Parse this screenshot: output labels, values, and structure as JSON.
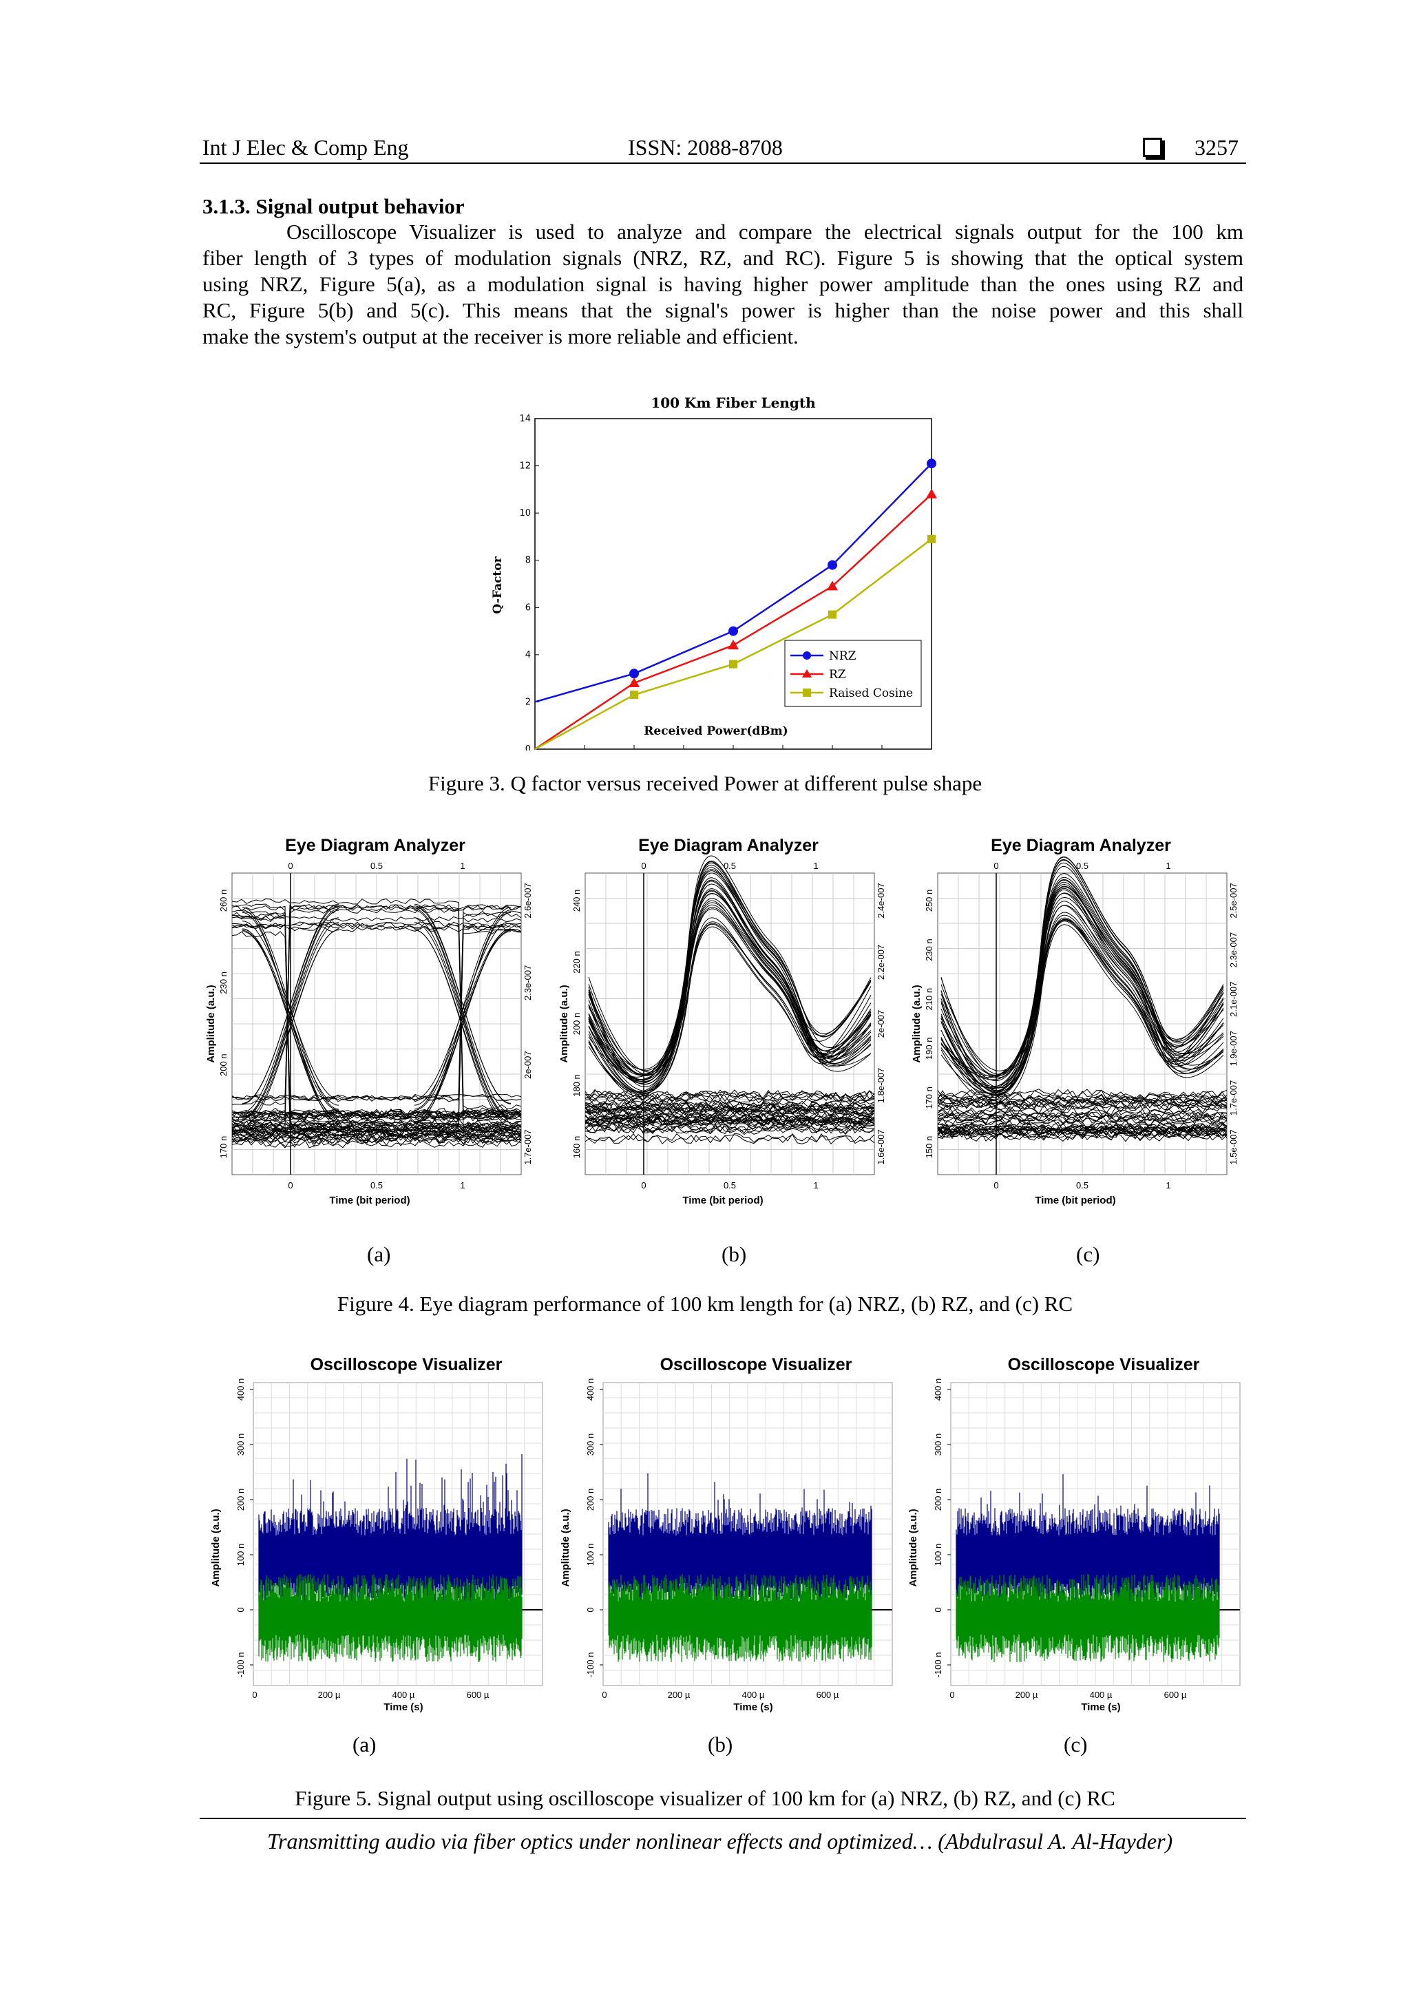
{
  "header": {
    "journal": "Int J Elec & Comp Eng",
    "issn": "ISSN: 2088-8708",
    "page_number": "3257"
  },
  "section": {
    "title": "3.1.3. Signal output behavior",
    "lines": [
      "Oscilloscope Visualizer is used to analyze and compare the electrical signals output for the 100 km",
      "fiber length of 3 types of modulation signals (NRZ, RZ, and RC). Figure 5 is showing that the optical system",
      "using NRZ, Figure 5(a), as a modulation signal is having higher power amplitude than the ones using RZ and",
      "RC, Figure 5(b) and 5(c). This means that the signal's power is higher than the noise power and this shall",
      "make the system's output at the receiver is more reliable and efficient."
    ]
  },
  "figure3": {
    "caption": "Figure 3. Q factor versus received Power at different pulse shape"
  },
  "chart_data": {
    "type": "line",
    "title": "100 Km Fiber Length",
    "xlabel": "Received Power(dBm)",
    "ylabel": "Q-Factor",
    "xlim": [
      -43,
      -35
    ],
    "ylim": [
      0,
      14
    ],
    "x_ticks": [
      "-43",
      "-42",
      "-41",
      "-40",
      "-39",
      "-38",
      "-37",
      "-36",
      "-35"
    ],
    "y_ticks": [
      "0",
      "2",
      "4",
      "6",
      "8",
      "10",
      "12",
      "14"
    ],
    "legend_position": "bottom-right",
    "series": [
      {
        "name": "NRZ",
        "color": "#1010e0",
        "marker": "circle",
        "x": [
          -43,
          -41,
          -39,
          -37,
          -35
        ],
        "y": [
          2.0,
          3.2,
          5.0,
          7.8,
          12.1
        ]
      },
      {
        "name": "RZ",
        "color": "#ee1111",
        "marker": "triangle",
        "x": [
          -43,
          -41,
          -39,
          -37,
          -35
        ],
        "y": [
          0,
          2.8,
          4.4,
          6.9,
          10.8
        ]
      },
      {
        "name": "Raised Cosine",
        "color": "#b8b800",
        "marker": "square",
        "x": [
          -43,
          -41,
          -39,
          -37,
          -35
        ],
        "y": [
          0,
          2.3,
          3.6,
          5.7,
          8.9
        ]
      }
    ]
  },
  "figure4": {
    "caption": "Figure 4. Eye diagram performance of 100 km length for (a) NRZ, (b) RZ, and (c) RC",
    "panels": [
      {
        "label": "(a)",
        "title": "Eye Diagram Analyzer",
        "xlabel": "Time (bit period)",
        "ylabel": "Amplitude (a.u.)",
        "x_ticks": [
          "0",
          "0.5",
          "1"
        ],
        "left_ticks": [
          "170 n",
          "200 n",
          "230 n",
          "260 n"
        ],
        "right_ticks": [
          "1.7e-007",
          "2e-007",
          "2.3e-007",
          "2.6e-007"
        ]
      },
      {
        "label": "(b)",
        "title": "Eye Diagram Analyzer",
        "xlabel": "Time (bit period)",
        "ylabel": "Amplitude (a.u.)",
        "x_ticks": [
          "0",
          "0.5",
          "1"
        ],
        "left_ticks": [
          "160 n",
          "180 n",
          "200 n",
          "220 n",
          "240 n"
        ],
        "right_ticks": [
          "1.6e-007",
          "1.8e-007",
          "2e-007",
          "2.2e-007",
          "2.4e-007"
        ]
      },
      {
        "label": "(c)",
        "title": "Eye Diagram Analyzer",
        "xlabel": "Time (bit period)",
        "ylabel": "Amplitude (a.u.)",
        "x_ticks": [
          "0",
          "0.5",
          "1"
        ],
        "left_ticks": [
          "150 n",
          "170 n",
          "190 n",
          "210 n",
          "230 n",
          "250 n"
        ],
        "right_ticks": [
          "1.5e-007",
          "1.7e-007",
          "1.9e-007",
          "2.1e-007",
          "2.3e-007",
          "2.5e-007"
        ]
      }
    ]
  },
  "figure5": {
    "caption": "Figure 5. Signal output using oscilloscope visualizer of 100 km for (a) NRZ, (b) RZ, and (c) RC",
    "panels": [
      {
        "label": "(a)",
        "title": "Oscilloscope Visualizer",
        "xlabel": "Time (s)",
        "ylabel": "Amplitude (a.u.)",
        "x_ticks": [
          "0",
          "200 µ",
          "400 µ",
          "600 µ"
        ],
        "y_ticks": [
          "-100 n",
          "0",
          "100 n",
          "200 n",
          "300 n",
          "400 n"
        ]
      },
      {
        "label": "(b)",
        "title": "Oscilloscope Visualizer",
        "xlabel": "Time (s)",
        "ylabel": "Amplitude (a.u.)",
        "x_ticks": [
          "0",
          "200 µ",
          "400 µ",
          "600 µ"
        ],
        "y_ticks": [
          "-100 n",
          "0",
          "100 n",
          "200 n",
          "300 n",
          "400 n"
        ]
      },
      {
        "label": "(c)",
        "title": "Oscilloscope Visualizer",
        "xlabel": "Time (s)",
        "ylabel": "Amplitude (a.u.)",
        "x_ticks": [
          "0",
          "200 µ",
          "400 µ",
          "600 µ"
        ],
        "y_ticks": [
          "-100 n",
          "0",
          "100 n",
          "200 n",
          "300 n",
          "400 n"
        ]
      }
    ]
  },
  "footer": {
    "text": "Transmitting audio via fiber optics under nonlinear effects and optimized… (Abdulrasul A. Al-Hayder)"
  }
}
